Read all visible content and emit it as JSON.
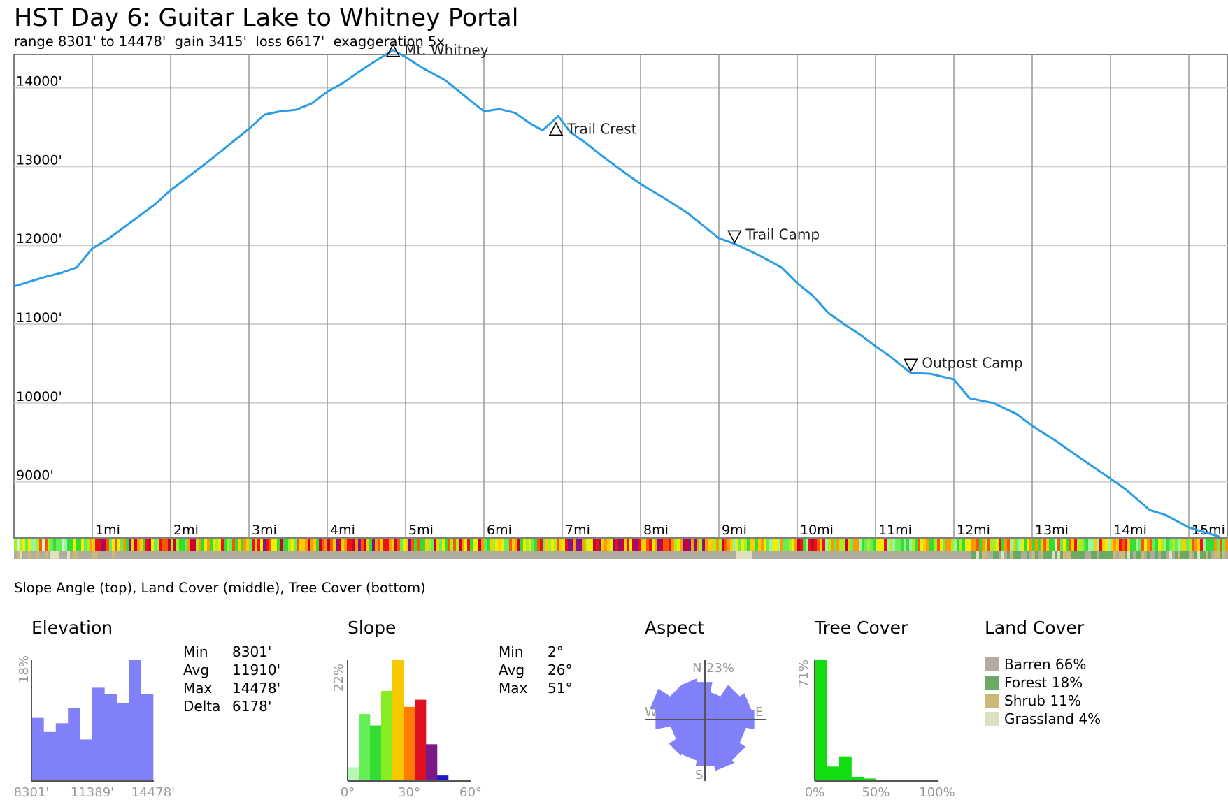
{
  "header": {
    "title": "HST Day 6: Guitar Lake to Whitney Portal",
    "subtitle": "range 8301' to 14478'  gain 3415'  loss 6617'  exaggeration 5x"
  },
  "strips_caption": "Slope Angle (top), Land Cover (middle), Tree Cover (bottom)",
  "chart_data": [
    {
      "type": "line",
      "title": "HST Day 6: Guitar Lake to Whitney Portal",
      "subtitle": "range 8301' to 14478'  gain 3415'  loss 6617'  exaggeration 5x",
      "x_unit": "mi",
      "y_unit": "ft",
      "xlim": [
        0,
        15.4
      ],
      "ylim": [
        8301,
        14478
      ],
      "grid": true,
      "x_ticks": [
        "1mi",
        "2mi",
        "3mi",
        "4mi",
        "5mi",
        "6mi",
        "7mi",
        "8mi",
        "9mi",
        "10mi",
        "11mi",
        "12mi",
        "13mi",
        "14mi",
        "15mi"
      ],
      "y_ticks": [
        "9000'",
        "10000'",
        "11000'",
        "12000'",
        "13000'",
        "14000'"
      ],
      "line_color": "#2a9de6",
      "series": [
        {
          "x": [
            0,
            0.2,
            0.4,
            0.6,
            0.8,
            1.0,
            1.2,
            1.5,
            1.8,
            2.0,
            2.2,
            2.5,
            2.8,
            3.0,
            3.2,
            3.4,
            3.6,
            3.8,
            4.0,
            4.2,
            4.4,
            4.6,
            4.84,
            5.0,
            5.2,
            5.5,
            5.8,
            6.0,
            6.2,
            6.4,
            6.6,
            6.75,
            6.95,
            7.1,
            7.3,
            7.5,
            7.8,
            8.0,
            8.3,
            8.6,
            9.0,
            9.2,
            9.5,
            9.8,
            10.0,
            10.2,
            10.4,
            10.6,
            10.8,
            11.0,
            11.2,
            11.45,
            11.7,
            12.0,
            12.2,
            12.5,
            12.8,
            13.0,
            13.3,
            13.6,
            14.0,
            14.2,
            14.5,
            14.7,
            15.0,
            15.2,
            15.4
          ],
          "y": [
            11480,
            11540,
            11600,
            11650,
            11720,
            11960,
            12080,
            12300,
            12520,
            12700,
            12850,
            13080,
            13320,
            13480,
            13660,
            13700,
            13720,
            13800,
            13950,
            14060,
            14200,
            14330,
            14478,
            14390,
            14260,
            14100,
            13860,
            13700,
            13730,
            13680,
            13540,
            13460,
            13640,
            13440,
            13300,
            13140,
            12920,
            12780,
            12600,
            12410,
            12090,
            12020,
            11880,
            11720,
            11520,
            11360,
            11140,
            11000,
            10870,
            10720,
            10580,
            10380,
            10370,
            10300,
            10060,
            10000,
            9860,
            9710,
            9520,
            9310,
            9040,
            8900,
            8640,
            8580,
            8420,
            8360,
            8301
          ]
        }
      ],
      "annotations": [
        {
          "label": "Mt. Whitney",
          "x": 4.84,
          "y": 14478,
          "marker": "peak"
        },
        {
          "label": "Trail Crest",
          "x": 6.92,
          "y": 13480,
          "marker": "peak"
        },
        {
          "label": "Trail Camp",
          "x": 9.2,
          "y": 12060,
          "marker": "low"
        },
        {
          "label": "Outpost Camp",
          "x": 11.45,
          "y": 10430,
          "marker": "low"
        }
      ]
    },
    {
      "type": "bar",
      "title": "Elevation",
      "ylabel": "18%",
      "x_tick_labels": [
        "8301'",
        "11389'",
        "14478'"
      ],
      "values": [
        9.4,
        7.3,
        8.6,
        10.9,
        6.2,
        13.9,
        12.9,
        11.6,
        18.0,
        12.9
      ],
      "ylim": [
        0,
        18
      ],
      "color": "#8080f8",
      "stats": [
        {
          "label": "Min",
          "value": "8301'"
        },
        {
          "label": "Avg",
          "value": "11910'"
        },
        {
          "label": "Max",
          "value": "14478'"
        },
        {
          "label": "Delta",
          "value": "6178'"
        }
      ]
    },
    {
      "type": "bar",
      "title": "Slope",
      "ylabel": "22%",
      "x_tick_labels": [
        "0°",
        "30°",
        "60°"
      ],
      "categories": [
        "0-5°",
        "5-10°",
        "10-15°",
        "15-20°",
        "20-25°",
        "25-30°",
        "30-35°",
        "35-40°",
        "40-45°",
        "45-50°",
        "50-55°"
      ],
      "values": [
        2.5,
        12.2,
        10.1,
        16.4,
        22.0,
        13.5,
        14.8,
        6.7,
        1.0,
        0,
        0
      ],
      "colors": [
        "#b7f7b7",
        "#66ee55",
        "#33dd33",
        "#88ee22",
        "#f5c800",
        "#ff7a00",
        "#dd1122",
        "#7a1a88",
        "#1a1acc",
        "#1a1acc",
        "#1a1acc"
      ],
      "ylim": [
        0,
        22
      ],
      "stats": [
        {
          "label": "Min",
          "value": "2°"
        },
        {
          "label": "Avg",
          "value": "26°"
        },
        {
          "label": "Max",
          "value": "51°"
        }
      ]
    },
    {
      "type": "area",
      "title": "Aspect",
      "max_label": "23%",
      "directions": [
        "N",
        "E",
        "S",
        "W"
      ],
      "color": "#8080f8"
    },
    {
      "type": "bar",
      "title": "Tree Cover",
      "ylabel": "71%",
      "x_tick_labels": [
        "0%",
        "50%",
        "100%"
      ],
      "values": [
        71,
        8.5,
        14.5,
        2.5,
        1.5,
        0.5,
        0.3,
        0,
        0,
        0
      ],
      "ylim": [
        0,
        71
      ],
      "color": "#11dd11"
    },
    {
      "type": "table",
      "title": "Land Cover",
      "entries": [
        {
          "label": "Barren 66%",
          "value": 66,
          "color": "#b0aca0"
        },
        {
          "label": "Forest 18%",
          "value": 18,
          "color": "#6aaa64"
        },
        {
          "label": "Shrub 11%",
          "value": 11,
          "color": "#ccb879"
        },
        {
          "label": "Grassland 4%",
          "value": 4,
          "color": "#dfdfc2"
        }
      ]
    }
  ]
}
